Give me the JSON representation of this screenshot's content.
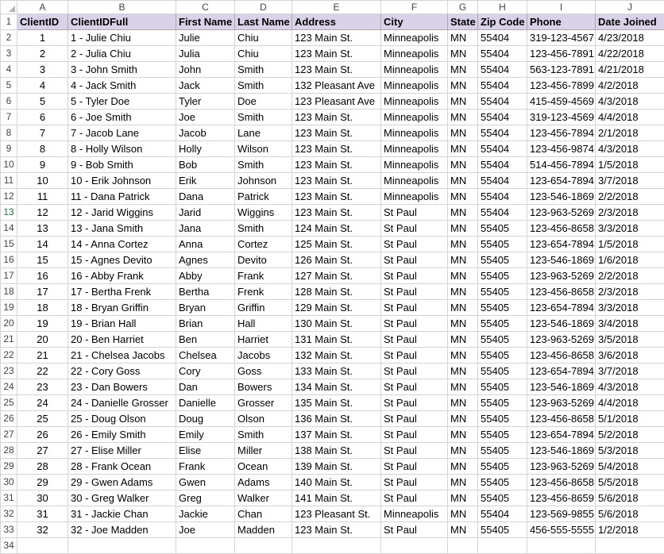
{
  "columns": [
    "A",
    "B",
    "C",
    "D",
    "E",
    "F",
    "G",
    "H",
    "I",
    "J"
  ],
  "headers": [
    "ClientID",
    "ClientIDFull",
    "First Name",
    "Last Name",
    "Address",
    "City",
    "State",
    "Zip Code",
    "Phone",
    "Date Joined"
  ],
  "rows": [
    [
      "1",
      "1 - Julie Chiu",
      "Julie",
      "Chiu",
      "123 Main St.",
      "Minneapolis",
      "MN",
      "55404",
      "319-123-4567",
      "4/23/2018"
    ],
    [
      "2",
      "2 - Julia Chiu",
      "Julia",
      "Chiu",
      "123 Main St.",
      "Minneapolis",
      "MN",
      "55404",
      "123-456-7891",
      "4/22/2018"
    ],
    [
      "3",
      "3 - John Smith",
      "John",
      "Smith",
      "123 Main St.",
      "Minneapolis",
      "MN",
      "55404",
      "563-123-7891",
      "4/21/2018"
    ],
    [
      "4",
      "4 - Jack Smith",
      "Jack",
      "Smith",
      "132 Pleasant Ave",
      "Minneapolis",
      "MN",
      "55404",
      "123-456-7899",
      "4/2/2018"
    ],
    [
      "5",
      "5 - Tyler Doe",
      "Tyler",
      "Doe",
      "123 Pleasant Ave",
      "Minneapolis",
      "MN",
      "55404",
      "415-459-4569",
      "4/3/2018"
    ],
    [
      "6",
      "6 - Joe Smith",
      "Joe",
      "Smith",
      "123 Main St.",
      "Minneapolis",
      "MN",
      "55404",
      "319-123-4569",
      "4/4/2018"
    ],
    [
      "7",
      "7 - Jacob Lane",
      "Jacob",
      "Lane",
      "123 Main St.",
      "Minneapolis",
      "MN",
      "55404",
      "123-456-7894",
      "2/1/2018"
    ],
    [
      "8",
      "8 - Holly Wilson",
      "Holly",
      "Wilson",
      "123 Main St.",
      "Minneapolis",
      "MN",
      "55404",
      "123-456-9874",
      "4/3/2018"
    ],
    [
      "9",
      "9 - Bob Smith",
      "Bob",
      "Smith",
      "123 Main St.",
      "Minneapolis",
      "MN",
      "55404",
      "514-456-7894",
      "1/5/2018"
    ],
    [
      "10",
      "10 - Erik Johnson",
      "Erik",
      "Johnson",
      "123 Main St.",
      "Minneapolis",
      "MN",
      "55404",
      "123-654-7894",
      "3/7/2018"
    ],
    [
      "11",
      "11 - Dana Patrick",
      "Dana",
      "Patrick",
      "123 Main St.",
      "Minneapolis",
      "MN",
      "55404",
      "123-546-1869",
      "2/2/2018"
    ],
    [
      "12",
      "12 - Jarid Wiggins",
      "Jarid",
      "Wiggins",
      "123 Main St.",
      "St Paul",
      "MN",
      "55404",
      "123-963-5269",
      "2/3/2018"
    ],
    [
      "13",
      "13 - Jana Smith",
      "Jana",
      "Smith",
      "124 Main St.",
      "St Paul",
      "MN",
      "55405",
      "123-456-8658",
      "3/3/2018"
    ],
    [
      "14",
      "14 - Anna Cortez",
      "Anna",
      "Cortez",
      "125 Main St.",
      "St Paul",
      "MN",
      "55405",
      "123-654-7894",
      "1/5/2018"
    ],
    [
      "15",
      "15 - Agnes Devito",
      "Agnes",
      "Devito",
      "126 Main St.",
      "St Paul",
      "MN",
      "55405",
      "123-546-1869",
      "1/6/2018"
    ],
    [
      "16",
      "16 - Abby Frank",
      "Abby",
      "Frank",
      "127 Main St.",
      "St Paul",
      "MN",
      "55405",
      "123-963-5269",
      "2/2/2018"
    ],
    [
      "17",
      "17 - Bertha Frenk",
      "Bertha",
      "Frenk",
      "128 Main St.",
      "St Paul",
      "MN",
      "55405",
      "123-456-8658",
      "2/3/2018"
    ],
    [
      "18",
      "18 - Bryan Griffin",
      "Bryan",
      "Griffin",
      "129 Main St.",
      "St Paul",
      "MN",
      "55405",
      "123-654-7894",
      "3/3/2018"
    ],
    [
      "19",
      "19 - Brian Hall",
      "Brian",
      "Hall",
      "130 Main St.",
      "St Paul",
      "MN",
      "55405",
      "123-546-1869",
      "3/4/2018"
    ],
    [
      "20",
      "20 - Ben Harriet",
      "Ben",
      "Harriet",
      "131 Main St.",
      "St Paul",
      "MN",
      "55405",
      "123-963-5269",
      "3/5/2018"
    ],
    [
      "21",
      "21 - Chelsea Jacobs",
      "Chelsea",
      "Jacobs",
      "132 Main St.",
      "St Paul",
      "MN",
      "55405",
      "123-456-8658",
      "3/6/2018"
    ],
    [
      "22",
      "22 - Cory Goss",
      "Cory",
      "Goss",
      "133 Main St.",
      "St Paul",
      "MN",
      "55405",
      "123-654-7894",
      "3/7/2018"
    ],
    [
      "23",
      "23 - Dan Bowers",
      "Dan",
      "Bowers",
      "134 Main St.",
      "St Paul",
      "MN",
      "55405",
      "123-546-1869",
      "4/3/2018"
    ],
    [
      "24",
      "24 - Danielle Grosser",
      "Danielle",
      "Grosser",
      "135 Main St.",
      "St Paul",
      "MN",
      "55405",
      "123-963-5269",
      "4/4/2018"
    ],
    [
      "25",
      "25 - Doug Olson",
      "Doug",
      "Olson",
      "136 Main St.",
      "St Paul",
      "MN",
      "55405",
      "123-456-8658",
      "5/1/2018"
    ],
    [
      "26",
      "26 - Emily Smith",
      "Emily",
      "Smith",
      "137 Main St.",
      "St Paul",
      "MN",
      "55405",
      "123-654-7894",
      "5/2/2018"
    ],
    [
      "27",
      "27 - Elise Miller",
      "Elise",
      "Miller",
      "138 Main St.",
      "St Paul",
      "MN",
      "55405",
      "123-546-1869",
      "5/3/2018"
    ],
    [
      "28",
      "28 - Frank Ocean",
      "Frank",
      "Ocean",
      "139 Main St.",
      "St Paul",
      "MN",
      "55405",
      "123-963-5269",
      "5/4/2018"
    ],
    [
      "29",
      "29 - Gwen Adams",
      "Gwen",
      "Adams",
      "140 Main St.",
      "St Paul",
      "MN",
      "55405",
      "123-456-8658",
      "5/5/2018"
    ],
    [
      "30",
      "30 - Greg Walker",
      "Greg",
      "Walker",
      "141 Main St.",
      "St Paul",
      "MN",
      "55405",
      "123-456-8659",
      "5/6/2018"
    ],
    [
      "31",
      "31 - Jackie Chan",
      "Jackie",
      "Chan",
      "123 Pleasant St.",
      "Minneapolis",
      "MN",
      "55404",
      "123-569-9855",
      "5/6/2018"
    ],
    [
      "32",
      "32 - Joe Madden",
      "Joe",
      "Madden",
      "123 Main St.",
      "St Paul",
      "MN",
      "55405",
      "456-555-5555",
      "1/2/2018"
    ]
  ],
  "extra_row_numbers": [
    "34"
  ],
  "selected_row_number": "13",
  "colors": {
    "header_fill": "#d9d2e9",
    "gridline": "#d4d4d4",
    "selected_row_header_text": "#217346"
  }
}
